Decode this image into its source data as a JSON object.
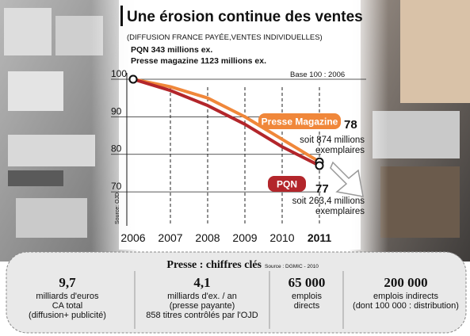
{
  "chart_data": {
    "type": "line",
    "title": "Une érosion continue des ventes",
    "subtitle": "(DIFFUSION FRANCE PAYÉE,VENTES INDIVIDUELLES)",
    "notes": [
      "PQN 343 millions ex.",
      "Presse magazine 1123 millions ex."
    ],
    "base_label": "Base 100 : 2006",
    "source": "Source: OJD.",
    "categories": [
      "2006",
      "2007",
      "2008",
      "2009",
      "2010",
      "2011"
    ],
    "series": [
      {
        "name": "Presse Magazine",
        "color": "#f0873a",
        "values": [
          100,
          98,
          95,
          90,
          84,
          78
        ],
        "annotation": [
          "soit 874 millions",
          "exemplaires"
        ]
      },
      {
        "name": "PQN",
        "color": "#b3262b",
        "values": [
          100,
          97,
          93,
          88,
          82,
          77
        ],
        "annotation": [
          "soit 263,4 millions",
          "exemplaires"
        ]
      }
    ],
    "ylim": [
      62,
      100
    ],
    "yticks": [
      70,
      80,
      90,
      100
    ],
    "grid": true
  },
  "key_figures": {
    "title": "Presse : chiffres clés",
    "source": "Source : DGMIC - 2010",
    "items": [
      {
        "value": "9,7",
        "lines": [
          "milliards d'euros",
          "CA total",
          "(diffusion+ publicité)"
        ]
      },
      {
        "value": "4,1",
        "lines": [
          "milliards d'ex. / an",
          "(presse payante)",
          "858 titres contrôlés par l'OJD"
        ]
      },
      {
        "value": "65 000",
        "lines": [
          "emplois",
          "directs"
        ]
      },
      {
        "value": "200 000",
        "lines": [
          "emplois indirects",
          "(dont 100 000 : distribution)"
        ]
      }
    ]
  }
}
